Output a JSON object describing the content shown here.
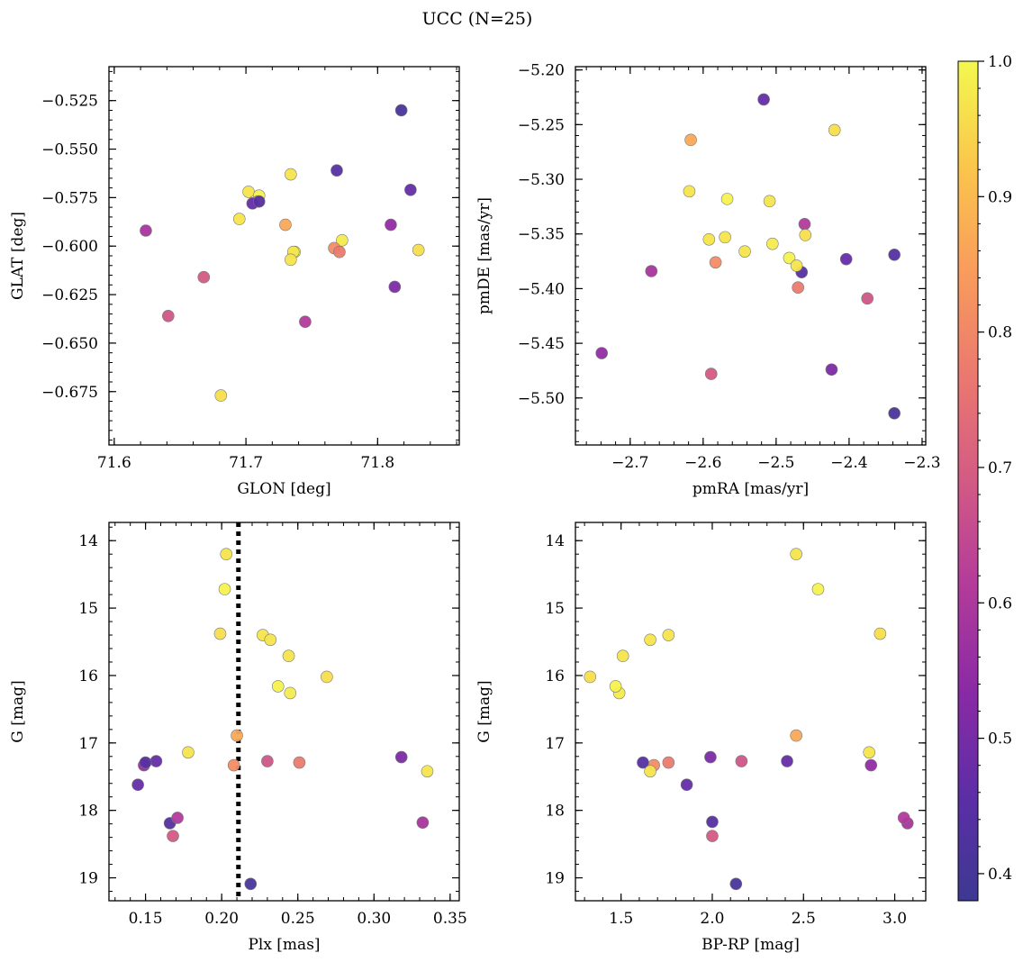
{
  "suptitle": "UCC (N=25)",
  "chart_data": {
    "type": "scatter",
    "title": "UCC (N=25)",
    "colormap": "plasma",
    "colorbar": {
      "range": [
        0.38,
        1.0
      ],
      "ticks": [
        0.4,
        0.5,
        0.6,
        0.7,
        0.8,
        0.9,
        1.0
      ],
      "tick_labels": [
        "0.4",
        "0.5",
        "0.6",
        "0.7",
        "0.8",
        "0.9",
        "1.0"
      ]
    },
    "probabilities": [
      0.41,
      0.44,
      0.47,
      0.55,
      0.51,
      0.59,
      0.69,
      0.61,
      0.96,
      0.97,
      0.99,
      0.97,
      0.97,
      0.97,
      0.98,
      0.96,
      0.99,
      0.87,
      0.81,
      0.77,
      0.68,
      0.97,
      0.47,
      0.44,
      0.97
    ],
    "subplots": [
      {
        "xlabel": "GLON [deg]",
        "ylabel": "GLAT [deg]",
        "xlim": [
          71.596,
          71.862
        ],
        "ylim": [
          -0.7025,
          -0.5075
        ],
        "ylim_inverted": false,
        "xticks": [
          71.6,
          71.7,
          71.8
        ],
        "xtick_labels": [
          "71.6",
          "71.7",
          "71.8"
        ],
        "yticks": [
          -0.525,
          -0.55,
          -0.575,
          -0.6,
          -0.625,
          -0.65,
          -0.675
        ],
        "ytick_labels": [
          "−0.525",
          "−0.550",
          "−0.575",
          "−0.600",
          "−0.625",
          "−0.650",
          "−0.675"
        ],
        "x": [
          71.818,
          71.769,
          71.825,
          71.81,
          71.813,
          71.624,
          71.668,
          71.745,
          71.681,
          71.702,
          71.71,
          71.709,
          71.734,
          71.695,
          71.773,
          71.831,
          71.737,
          71.73,
          71.767,
          71.771,
          71.641,
          71.736,
          71.705,
          71.71,
          71.734
        ],
        "y": [
          -0.53,
          -0.561,
          -0.571,
          -0.589,
          -0.621,
          -0.592,
          -0.616,
          -0.639,
          -0.677,
          -0.572,
          -0.574,
          -0.577,
          -0.563,
          -0.586,
          -0.597,
          -0.602,
          -0.603,
          -0.589,
          -0.601,
          -0.603,
          -0.636,
          -0.603,
          -0.578,
          -0.577,
          -0.607
        ]
      },
      {
        "xlabel": "pmRA [mas/yr]",
        "ylabel": "pmDE [mas/yr]",
        "xlim": [
          -2.775,
          -2.295
        ],
        "ylim": [
          -5.543,
          -5.197
        ],
        "ylim_inverted": false,
        "xticks": [
          -2.7,
          -2.6,
          -2.5,
          -2.4,
          -2.3
        ],
        "xtick_labels": [
          "−2.7",
          "−2.6",
          "−2.5",
          "−2.4",
          "−2.3"
        ],
        "yticks": [
          -5.2,
          -5.25,
          -5.3,
          -5.35,
          -5.4,
          -5.45,
          -5.5
        ],
        "ytick_labels": [
          "−5.20",
          "−5.25",
          "−5.30",
          "−5.35",
          "−5.40",
          "−5.45",
          "−5.50"
        ],
        "x": [
          -2.338,
          -2.338,
          -2.404,
          -2.739,
          -2.424,
          -2.671,
          -2.589,
          -2.461,
          -2.42,
          -2.619,
          -2.567,
          -2.57,
          -2.509,
          -2.543,
          -2.505,
          -2.46,
          -2.482,
          -2.617,
          -2.583,
          -2.47,
          -2.375,
          -2.592,
          -2.517,
          -2.465,
          -2.472
        ],
        "y": [
          -5.514,
          -5.369,
          -5.373,
          -5.459,
          -5.474,
          -5.384,
          -5.478,
          -5.341,
          -5.255,
          -5.311,
          -5.318,
          -5.353,
          -5.32,
          -5.366,
          -5.359,
          -5.351,
          -5.372,
          -5.264,
          -5.376,
          -5.399,
          -5.409,
          -5.355,
          -5.227,
          -5.385,
          -5.379
        ]
      },
      {
        "xlabel": "Plx [mas]",
        "ylabel": "G [mag]",
        "xlim": [
          0.126,
          0.356
        ],
        "ylim": [
          13.73,
          19.34
        ],
        "ylim_inverted": true,
        "xticks": [
          0.15,
          0.2,
          0.25,
          0.3,
          0.35
        ],
        "xtick_labels": [
          "0.15",
          "0.20",
          "0.25",
          "0.30",
          "0.35"
        ],
        "yticks": [
          14,
          15,
          16,
          17,
          18,
          19
        ],
        "ytick_labels": [
          "14",
          "15",
          "16",
          "17",
          "18",
          "19"
        ],
        "vline": {
          "x": 0.211,
          "style": "dotted"
        },
        "x": [
          0.219,
          0.166,
          0.157,
          0.149,
          0.318,
          0.332,
          0.168,
          0.171,
          0.199,
          0.203,
          0.202,
          0.227,
          0.232,
          0.244,
          0.245,
          0.269,
          0.237,
          0.21,
          0.208,
          0.251,
          0.23,
          0.178,
          0.145,
          0.15,
          0.335
        ],
        "y": [
          19.09,
          18.19,
          17.27,
          17.33,
          17.21,
          18.18,
          18.38,
          18.11,
          15.38,
          14.2,
          14.72,
          15.4,
          15.47,
          15.71,
          16.26,
          16.02,
          16.16,
          16.89,
          17.33,
          17.29,
          17.27,
          17.14,
          17.62,
          17.29,
          17.42
        ]
      },
      {
        "xlabel": "BP-RP [mag]",
        "ylabel": "G [mag]",
        "xlim": [
          1.25,
          3.17
        ],
        "ylim": [
          13.73,
          19.34
        ],
        "ylim_inverted": true,
        "xticks": [
          1.5,
          2.0,
          2.5,
          3.0
        ],
        "xtick_labels": [
          "1.5",
          "2.0",
          "2.5",
          "3.0"
        ],
        "yticks": [
          14,
          15,
          16,
          17,
          18,
          19
        ],
        "ytick_labels": [
          "14",
          "15",
          "16",
          "17",
          "18",
          "19"
        ],
        "x": [
          2.13,
          2.0,
          2.41,
          2.87,
          1.99,
          3.07,
          2.0,
          3.05,
          2.92,
          2.46,
          2.58,
          1.76,
          1.66,
          1.51,
          1.49,
          1.33,
          1.47,
          2.46,
          1.68,
          1.76,
          2.16,
          2.86,
          1.86,
          1.62,
          1.66
        ],
        "y": [
          19.09,
          18.17,
          17.27,
          17.33,
          17.21,
          18.19,
          18.38,
          18.11,
          15.38,
          14.2,
          14.72,
          15.4,
          15.47,
          15.71,
          16.26,
          16.02,
          16.16,
          16.89,
          17.33,
          17.29,
          17.27,
          17.14,
          17.62,
          17.29,
          17.42
        ]
      }
    ]
  }
}
